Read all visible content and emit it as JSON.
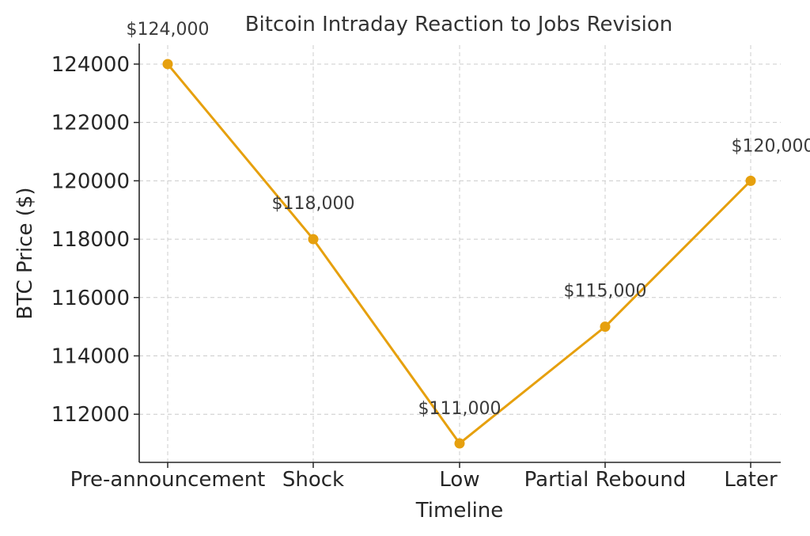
{
  "chart_data": {
    "type": "line",
    "title": "Bitcoin Intraday Reaction to Jobs Revision",
    "xlabel": "Timeline",
    "ylabel": "BTC Price ($)",
    "categories": [
      "Pre-announcement",
      "Shock",
      "Low",
      "Partial Rebound",
      "Later"
    ],
    "values": [
      124000,
      118000,
      111000,
      115000,
      120000
    ],
    "data_labels": [
      "$124,000",
      "$118,000",
      "$111,000",
      "$115,000",
      "$120,000"
    ],
    "yticks": [
      112000,
      114000,
      116000,
      118000,
      120000,
      122000,
      124000
    ],
    "ylim": [
      110350,
      124650
    ],
    "grid": true,
    "legend": "none",
    "line_color": "#E6A00E",
    "grid_color": "#cccccc"
  }
}
